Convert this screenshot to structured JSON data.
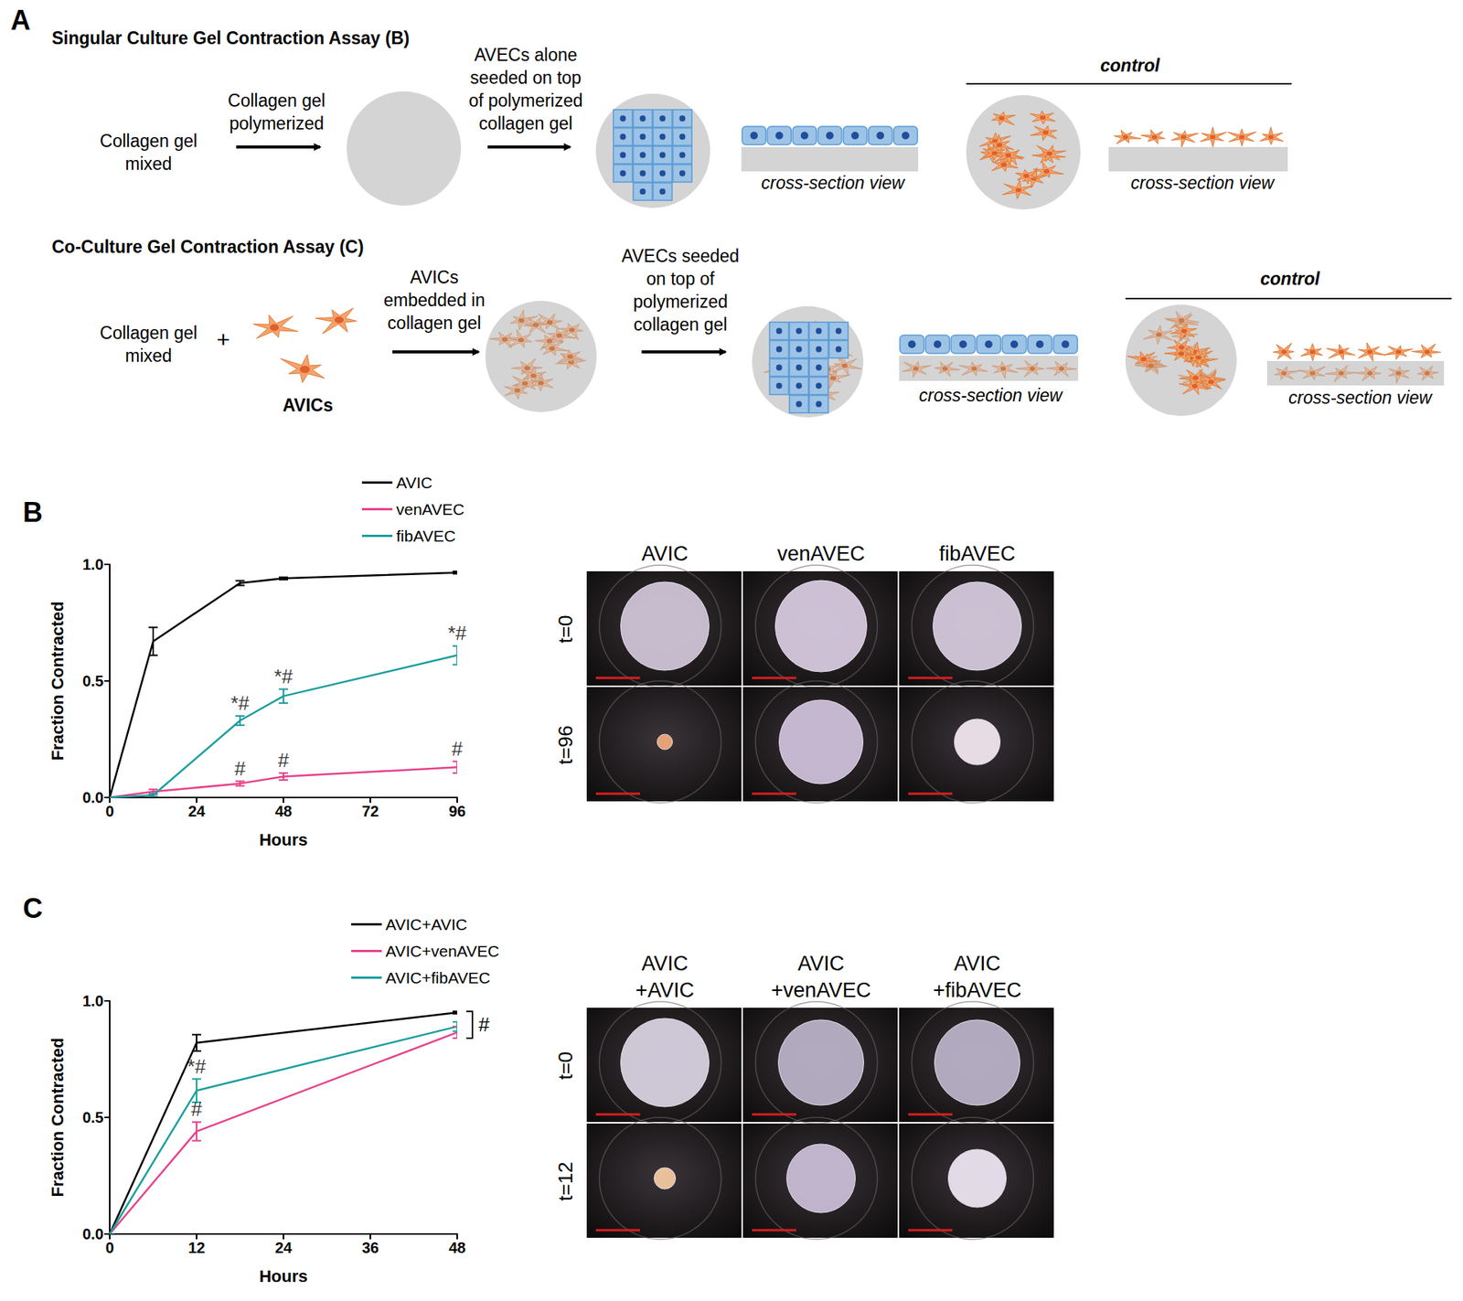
{
  "panel_A": {
    "label": "A",
    "rows": [
      {
        "title": "Singular Culture Gel Contraction Assay (B)",
        "steps": [
          [
            "Collagen gel",
            "mixed"
          ],
          [
            "Collagen gel",
            "polymerized"
          ],
          [
            "AVECs alone",
            "seeded on top",
            "of polymerized",
            "collagen gel"
          ]
        ],
        "cross_section": "cross-section view",
        "control": "control"
      },
      {
        "title": "Co-Culture Gel Contraction Assay (C)",
        "steps": [
          [
            "Collagen gel",
            "mixed"
          ],
          [
            "AVICs",
            "embedded in",
            "collagen gel"
          ],
          [
            "AVECs seeded",
            "on top of",
            "polymerized",
            "collagen gel"
          ]
        ],
        "plus": "+",
        "cells": "AVICs",
        "cross_section": "cross-section view",
        "control": "control"
      }
    ]
  },
  "chart_data": [
    {
      "panel": "B",
      "type": "line",
      "x_label": "Hours",
      "y_label": "Fraction Contracted",
      "x": [
        0,
        12,
        36,
        48,
        96
      ],
      "xlim": [
        0,
        96
      ],
      "xticks": [
        0,
        24,
        48,
        72,
        96
      ],
      "ylim": [
        0,
        1
      ],
      "yticks": [
        {
          "value": 0,
          "label": "0.0"
        },
        {
          "value": 0.5,
          "label": "0.5"
        },
        {
          "value": 1,
          "label": "1.0"
        }
      ],
      "grid": false,
      "legend": "top",
      "series": [
        {
          "name": "AVIC",
          "color": "#000000",
          "values": [
            0,
            0.67,
            0.92,
            0.94,
            0.965
          ],
          "errors": [
            0,
            0.06,
            0.01,
            0.005,
            0.005
          ]
        },
        {
          "name": "venAVEC",
          "color": "#e6428a",
          "values": [
            0,
            0.025,
            0.06,
            0.09,
            0.13
          ],
          "errors": [
            0,
            0.01,
            0.01,
            0.015,
            0.025
          ]
        },
        {
          "name": "fibAVEC",
          "color": "#1b9e9e",
          "values": [
            0,
            0.01,
            0.33,
            0.435,
            0.61
          ],
          "errors": [
            0,
            0.005,
            0.02,
            0.03,
            0.04
          ]
        }
      ],
      "annotations": [
        {
          "series": "fibAVEC",
          "x": 36,
          "text": "*#"
        },
        {
          "series": "fibAVEC",
          "x": 48,
          "text": "*#"
        },
        {
          "series": "fibAVEC",
          "x": 96,
          "text": "*#"
        },
        {
          "series": "venAVEC",
          "x": 36,
          "text": "#"
        },
        {
          "series": "venAVEC",
          "x": 48,
          "text": "#"
        },
        {
          "series": "venAVEC",
          "x": 96,
          "text": "#"
        }
      ]
    },
    {
      "panel": "C",
      "type": "line",
      "x_label": "Hours",
      "y_label": "Fraction Contracted",
      "x": [
        0,
        12,
        48
      ],
      "xlim": [
        0,
        48
      ],
      "xticks": [
        0,
        12,
        24,
        36,
        48
      ],
      "ylim": [
        0,
        1
      ],
      "yticks": [
        {
          "value": 0,
          "label": "0.0"
        },
        {
          "value": 0.5,
          "label": "0.5"
        },
        {
          "value": 1,
          "label": "1.0"
        }
      ],
      "grid": false,
      "legend": "top",
      "series": [
        {
          "name": "AVIC+AVIC",
          "color": "#000000",
          "values": [
            0,
            0.82,
            0.95
          ],
          "errors": [
            0,
            0.035,
            0.005
          ]
        },
        {
          "name": "AVIC+venAVEC",
          "color": "#e6428a",
          "values": [
            0,
            0.44,
            0.865
          ],
          "errors": [
            0,
            0.04,
            0.025
          ]
        },
        {
          "name": "AVIC+fibAVEC",
          "color": "#1b9e9e",
          "values": [
            0,
            0.615,
            0.89
          ],
          "errors": [
            0,
            0.05,
            0.02
          ]
        }
      ],
      "annotations": [
        {
          "series": "AVIC+fibAVEC",
          "x": 12,
          "text": "*#"
        },
        {
          "series": "AVIC+venAVEC",
          "x": 12,
          "text": "#"
        },
        {
          "series": [
            "AVIC+AVIC",
            "AVIC+venAVEC",
            "AVIC+fibAVEC"
          ],
          "x": 48,
          "text": "#"
        }
      ]
    }
  ],
  "photo_panels": [
    {
      "columns": [
        [
          "AVIC"
        ],
        [
          "venAVEC"
        ],
        [
          "fibAVEC"
        ]
      ],
      "rows": [
        "t=0",
        "t=96"
      ]
    },
    {
      "columns": [
        [
          "AVIC",
          "+AVIC"
        ],
        [
          "AVIC",
          "+venAVEC"
        ],
        [
          "AVIC",
          "+fibAVEC"
        ]
      ],
      "rows": [
        "t=0",
        "t=12"
      ]
    }
  ]
}
